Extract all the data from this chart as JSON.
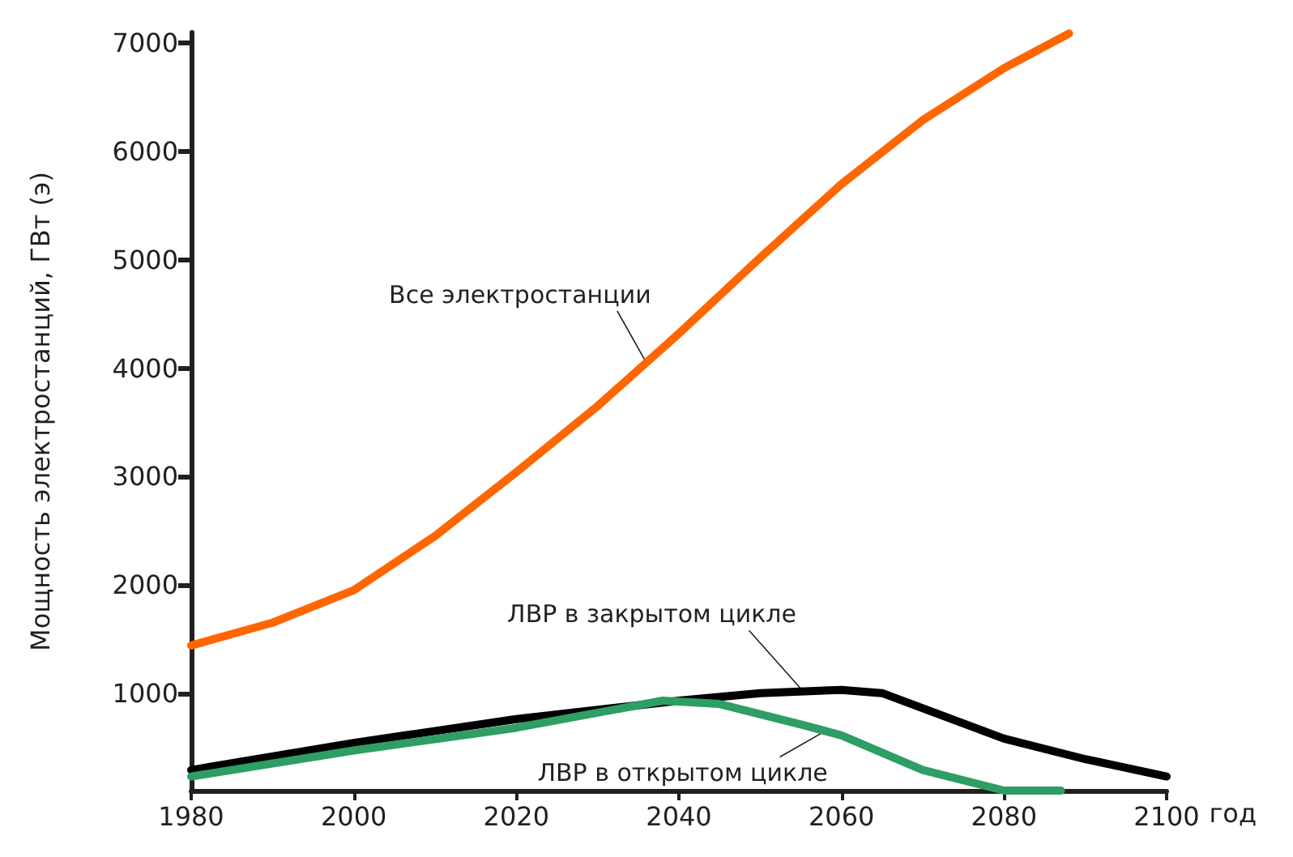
{
  "chart_data": {
    "type": "line",
    "xlabel": "год",
    "ylabel": "Мощность электростанций, ГВт (э)",
    "xlim": [
      1980,
      2100
    ],
    "xticks": [
      1980,
      2000,
      2020,
      2040,
      2060,
      2080,
      2100
    ],
    "ylim": [
      100,
      7100
    ],
    "yticks": [
      1000,
      2000,
      3000,
      4000,
      5000,
      6000,
      7000
    ],
    "grid": false,
    "marker": "none",
    "line_style": "solid",
    "series": [
      {
        "color": "#ff6600",
        "x": [
          1980,
          1990,
          2000,
          2010,
          2020,
          2030,
          2040,
          2050,
          2060,
          2070,
          2080,
          2088
        ],
        "values": [
          1440,
          1650,
          1950,
          2450,
          3040,
          3650,
          4320,
          5020,
          5700,
          6290,
          6770,
          7090
        ]
      },
      {
        "color": "#000000",
        "x": [
          1980,
          2000,
          2020,
          2040,
          2050,
          2060,
          2065,
          2070,
          2080,
          2090,
          2100
        ],
        "values": [
          290,
          540,
          760,
          930,
          1000,
          1030,
          1000,
          860,
          580,
          390,
          230
        ]
      },
      {
        "color": "#2e9e64",
        "x": [
          1980,
          2000,
          2020,
          2038,
          2045,
          2055,
          2060,
          2070,
          2080,
          2087
        ],
        "values": [
          230,
          470,
          680,
          930,
          900,
          710,
          610,
          290,
          100,
          100
        ]
      }
    ],
    "annotations": [
      {
        "text": "Все электростанции",
        "x": 2036,
        "y": 4050
      },
      {
        "text": "ЛВР в закрытом цикле",
        "x": 2055,
        "y": 1040
      },
      {
        "text": "ЛВР в открытом цикле",
        "x": 2058,
        "y": 650
      }
    ]
  }
}
